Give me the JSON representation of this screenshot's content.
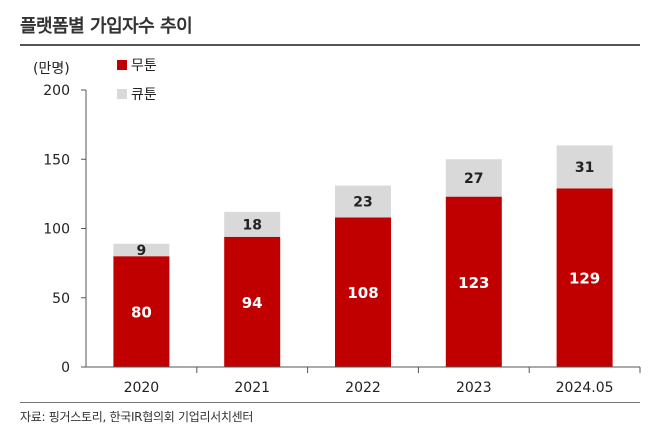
{
  "title": "플랫폼별 가입자수 추이",
  "source": "자료: 핑거스토리, 한국IR협의회 기업리서치센터",
  "chart_data": {
    "type": "bar",
    "stacked": true,
    "unit_label": "(만명)",
    "categories": [
      "2020",
      "2021",
      "2022",
      "2023",
      "2024.05"
    ],
    "series": [
      {
        "name": "무툰",
        "values": [
          80,
          94,
          108,
          123,
          129
        ],
        "color": "#c00000"
      },
      {
        "name": "큐툰",
        "values": [
          9,
          18,
          23,
          27,
          31
        ],
        "color": "#d9d9d9"
      }
    ],
    "ylim": [
      0,
      200
    ],
    "yticks": [
      0,
      50,
      100,
      150,
      200
    ],
    "title": "플랫폼별 가입자수 추이",
    "xlabel": "",
    "ylabel": "(만명)",
    "legend_position": "top-left"
  }
}
